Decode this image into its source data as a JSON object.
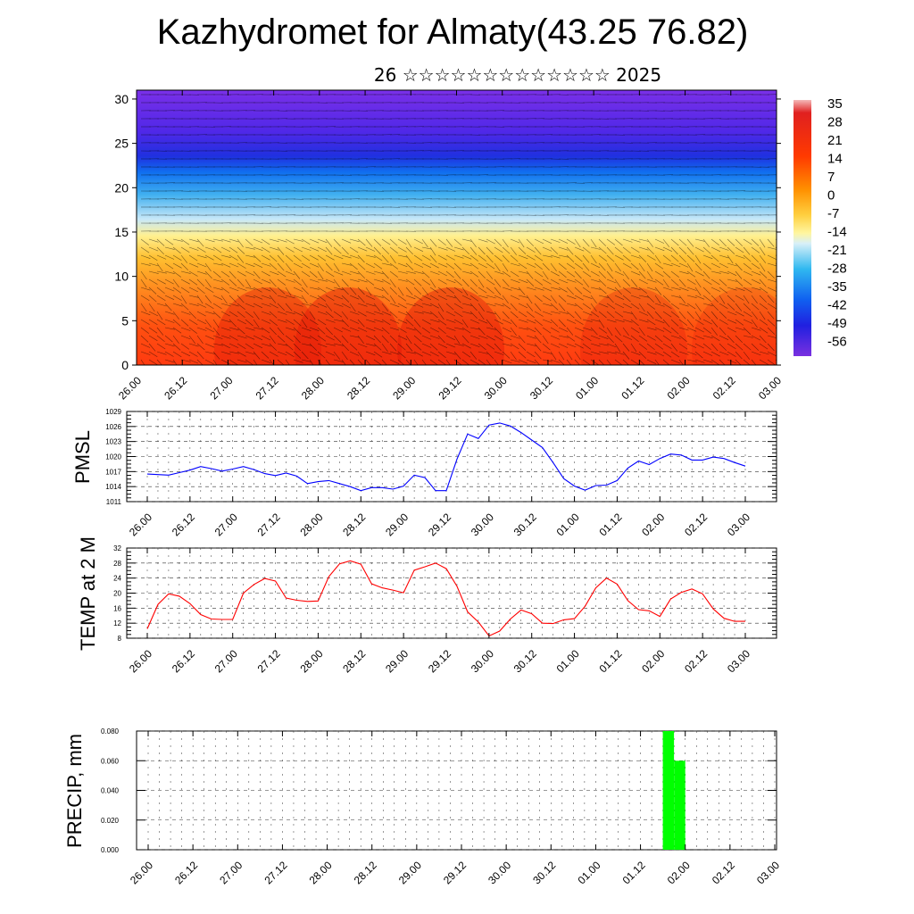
{
  "title": "Kazhydromet for Almaty(43.25 76.82)",
  "subtitle": "26 ☆☆☆☆☆☆☆☆☆☆☆☆☆ 2025",
  "x_tick_labels": [
    "26.00",
    "26.12",
    "27.00",
    "27.12",
    "28.00",
    "28.12",
    "29.00",
    "29.12",
    "30.00",
    "30.12",
    "01.00",
    "01.12",
    "02.00",
    "02.12",
    "03.00"
  ],
  "colors": {
    "pmsl_line": "#0000ff",
    "temp_line": "#ff0000",
    "precip_bar": "#00ff00",
    "frame": "#000000"
  },
  "chart_data": [
    {
      "type": "heatmap",
      "title": "",
      "description_free": true,
      "y_tick_labels": [
        "0",
        "5",
        "10",
        "15",
        "20",
        "25",
        "30"
      ],
      "ylim": [
        0,
        31
      ],
      "colorbar_labels": [
        "35",
        "28",
        "21",
        "14",
        "7",
        "0",
        "-7",
        "-14",
        "-21",
        "-28",
        "-35",
        "-42",
        "-49",
        "-56"
      ],
      "layers": [
        {
          "level_min": 0,
          "level_max": 4.5,
          "value": 30
        },
        {
          "level_min": 4.5,
          "level_max": 9,
          "value": 22
        },
        {
          "level_min": 9,
          "level_max": 12,
          "value": 12
        },
        {
          "level_min": 12,
          "level_max": 15,
          "value": 0
        },
        {
          "level_min": 15,
          "level_max": 17,
          "value": -14
        },
        {
          "level_min": 17,
          "level_max": 20,
          "value": -28
        },
        {
          "level_min": 20,
          "level_max": 22.5,
          "value": -42
        },
        {
          "level_min": 22.5,
          "level_max": 27,
          "value": -56
        },
        {
          "level_min": 27,
          "level_max": 31,
          "value": -60
        }
      ]
    },
    {
      "type": "line",
      "ylabel": "PMSL",
      "ylim": [
        1011,
        1029
      ],
      "y_tick_labels": [
        "1011",
        "1014",
        "1017",
        "1020",
        "1023",
        "1026",
        "1029"
      ],
      "x": [
        0,
        3,
        6,
        9,
        12,
        15,
        18,
        21,
        24,
        27,
        30,
        33,
        36,
        39,
        42,
        45,
        48,
        51,
        54,
        57,
        60,
        63,
        66,
        69,
        72,
        75,
        78,
        81,
        84,
        87,
        90,
        93,
        96,
        99,
        102,
        105,
        108,
        111,
        114,
        117,
        120,
        123,
        126,
        129,
        132,
        135,
        138,
        141,
        144,
        147,
        150,
        153,
        156,
        159,
        162,
        165,
        168
      ],
      "values": [
        1016.5,
        1016.4,
        1016.3,
        1016.8,
        1017.3,
        1018.0,
        1017.6,
        1017.1,
        1017.5,
        1018.0,
        1017.4,
        1016.6,
        1016.2,
        1016.7,
        1016.1,
        1014.6,
        1015.0,
        1015.2,
        1014.6,
        1014.0,
        1013.2,
        1013.8,
        1013.8,
        1013.5,
        1014.1,
        1016.3,
        1015.8,
        1013.2,
        1013.2,
        1019.5,
        1024.5,
        1023.6,
        1026.3,
        1026.7,
        1026.1,
        1024.8,
        1023.3,
        1021.8,
        1018.8,
        1015.6,
        1014.1,
        1013.3,
        1014.2,
        1014.3,
        1015.2,
        1017.7,
        1019.1,
        1018.4,
        1019.6,
        1020.5,
        1020.3,
        1019.3,
        1019.3,
        1019.9,
        1019.6,
        1018.8,
        1018.1
      ]
    },
    {
      "type": "line",
      "ylabel": "TEMP at 2 M",
      "ylim": [
        8,
        32
      ],
      "y_tick_labels": [
        "8",
        "12",
        "16",
        "20",
        "24",
        "28",
        "32"
      ],
      "x": [
        0,
        3,
        6,
        9,
        12,
        15,
        18,
        21,
        24,
        27,
        30,
        33,
        36,
        39,
        42,
        45,
        48,
        51,
        54,
        57,
        60,
        63,
        66,
        69,
        72,
        75,
        78,
        81,
        84,
        87,
        90,
        93,
        96,
        99,
        102,
        105,
        108,
        111,
        114,
        117,
        120,
        123,
        126,
        129,
        132,
        135,
        138,
        141,
        144,
        147,
        150,
        153,
        156,
        159,
        162,
        165,
        168
      ],
      "values": [
        10.5,
        17.0,
        19.8,
        19.2,
        17.2,
        14.3,
        13.1,
        13.0,
        13.0,
        20.0,
        22.3,
        23.9,
        23.2,
        18.7,
        18.1,
        17.8,
        17.9,
        24.4,
        27.8,
        28.6,
        27.7,
        22.5,
        21.4,
        20.8,
        20.1,
        26.1,
        27.0,
        28.0,
        26.5,
        21.8,
        15.0,
        12.3,
        8.6,
        9.9,
        13.1,
        15.5,
        14.5,
        12.0,
        11.9,
        12.9,
        13.2,
        16.5,
        21.4,
        24.0,
        22.4,
        18.0,
        15.6,
        15.3,
        13.8,
        18.4,
        20.2,
        21.1,
        19.8,
        15.8,
        13.3,
        12.5,
        12.5
      ]
    },
    {
      "type": "bar",
      "ylabel": "PRECIP, mm",
      "ylim": [
        0,
        0.08
      ],
      "y_tick_labels": [
        "0.000",
        "0.020",
        "0.040",
        "0.060",
        "0.080"
      ],
      "bars": [
        {
          "x_start": 138,
          "x_end": 141,
          "value": 0.08
        },
        {
          "x_start": 141,
          "x_end": 144,
          "value": 0.06
        }
      ]
    }
  ]
}
